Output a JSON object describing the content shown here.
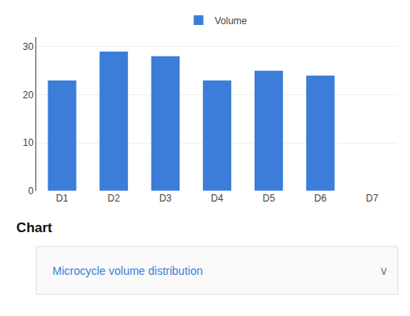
{
  "chart_data": {
    "type": "bar",
    "title": "Chart",
    "subtitle": "Microcycle volume distribution",
    "annotations": [
      {
        "text": "∨"
      }
    ],
    "categories": [
      "D1",
      "D2",
      "D3",
      "D4",
      "D5",
      "D6",
      "D7"
    ],
    "series": [
      {
        "name": "Volume",
        "color": "#3B7DD8",
        "values": [
          23,
          29,
          28,
          23,
          25,
          24,
          0
        ]
      }
    ],
    "ylim": [
      0,
      32
    ],
    "yticks": [
      0,
      10,
      20,
      30
    ],
    "grid": true,
    "legend": "top"
  }
}
